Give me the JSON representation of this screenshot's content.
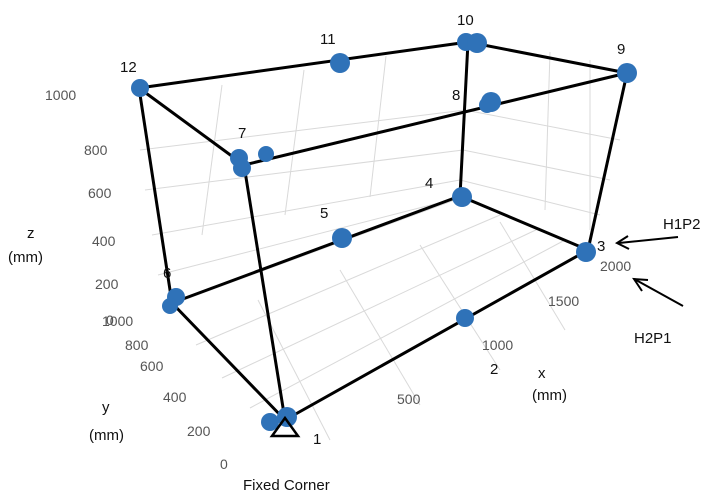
{
  "axes": {
    "x": {
      "title_line1": "x",
      "title_line2": "(mm)",
      "ticks": [
        "500",
        "1000",
        "1500",
        "2000"
      ]
    },
    "y": {
      "title_line1": "y",
      "title_line2": "(mm)",
      "ticks": [
        "0",
        "200",
        "400",
        "600",
        "800",
        "1000"
      ]
    },
    "z": {
      "title_line1": "z",
      "title_line2": "(mm)",
      "ticks": [
        "0",
        "200",
        "400",
        "600",
        "800",
        "1000"
      ]
    }
  },
  "nodes": [
    {
      "id": "1",
      "label": "1"
    },
    {
      "id": "2",
      "label": "2"
    },
    {
      "id": "3",
      "label": "3"
    },
    {
      "id": "4",
      "label": "4"
    },
    {
      "id": "5",
      "label": "5"
    },
    {
      "id": "6",
      "label": "6"
    },
    {
      "id": "7",
      "label": "7"
    },
    {
      "id": "8",
      "label": "8"
    },
    {
      "id": "9",
      "label": "9"
    },
    {
      "id": "10",
      "label": "10"
    },
    {
      "id": "11",
      "label": "11"
    },
    {
      "id": "12",
      "label": "12"
    }
  ],
  "fixed_corner_label": "Fixed Corner",
  "callouts": [
    {
      "id": "h1p2",
      "label": "H1P2"
    },
    {
      "id": "h2p1",
      "label": "H2P1"
    }
  ],
  "colors": {
    "marker": "#2f72b8",
    "frame": "#000000",
    "grid": "#d9d9d9",
    "tick_text": "#555555"
  }
}
